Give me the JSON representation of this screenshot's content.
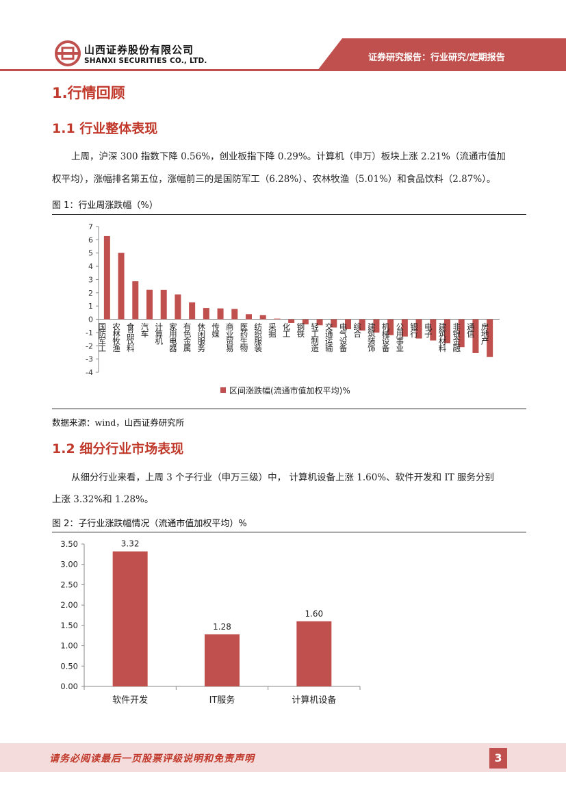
{
  "header": {
    "company_cn": "山西证券股份有限公司",
    "company_en": "SHANXI SECURITIES CO., LTD.",
    "report_type": "证券研究报告：行业研究/定期报告"
  },
  "section1": {
    "title": "1.行情回顾"
  },
  "section1_1": {
    "title": "1.1 行业整体表现",
    "para_line1": "上周，沪深 300 指数下降 0.56%，创业板指下降 0.29%。计算机（申万）板块上涨 2.21%（流通市值加",
    "para_line2": "权平均），涨幅排名第五位，涨幅前三的是国防军工（6.28%）、农林牧渔（5.01%）和食品饮料（2.87%）。"
  },
  "figure1": {
    "caption": "图 1：行业周涨跌幅（%）",
    "source": "数据来源：wind，山西证券研究所"
  },
  "section1_2": {
    "title": "1.2 细分行业市场表现",
    "para_line1": "从细分行业来看，上周 3 个子行业（申万三级）中， 计算机设备上涨 1.60%、软件开发和 IT 服务分别",
    "para_line2": "上涨 3.32%和 1.28%。"
  },
  "figure2": {
    "caption": "图 2：子行业涨跌幅情况（流通市值加权平均）%"
  },
  "chart_data": [
    {
      "type": "bar",
      "categories": [
        "国防军工",
        "农林牧渔",
        "食品饮料",
        "汽车",
        "计算机",
        "家用电器",
        "有色金属",
        "休闲服务",
        "传媒",
        "商业贸易",
        "医药生物",
        "纺织服装",
        "采掘",
        "化工",
        "钢铁",
        "轻工制造",
        "交通运输",
        "电气设备",
        "综合",
        "建筑装饰",
        "机械设备",
        "公用事业",
        "银行",
        "电子",
        "建筑材料",
        "非银金融",
        "通信",
        "房地产"
      ],
      "series": [
        {
          "name": "区间涨跌幅(流通市值加权平均)%",
          "values": [
            6.28,
            5.01,
            2.87,
            2.22,
            2.21,
            1.87,
            1.28,
            0.85,
            0.82,
            0.78,
            0.38,
            0.32,
            0.05,
            -0.28,
            -0.38,
            -0.45,
            -0.62,
            -0.75,
            -0.85,
            -1.0,
            -1.2,
            -1.3,
            -1.45,
            -1.6,
            -1.8,
            -2.1,
            -2.55,
            -2.85
          ]
        }
      ],
      "ylim": [
        -4,
        7
      ],
      "yticks": [
        "7",
        "6",
        "5",
        "4",
        "3",
        "2",
        "1",
        "0",
        "-1",
        "-2",
        "-3",
        "-4"
      ],
      "color": "#c0504d",
      "legend": "bottom",
      "grid": false
    },
    {
      "type": "bar",
      "categories": [
        "软件开发",
        "IT服务",
        "计算机设备"
      ],
      "values": [
        3.32,
        1.28,
        1.6
      ],
      "data_labels": [
        "3.32",
        "1.28",
        "1.60"
      ],
      "ylim": [
        0,
        3.5
      ],
      "yticks": [
        "3.50",
        "3.00",
        "2.50",
        "2.00",
        "1.50",
        "1.00",
        "0.50",
        "0.00"
      ],
      "color": "#c0504d",
      "grid": false
    }
  ],
  "footer": {
    "disclaimer": "请务必阅读最后一页股票评级说明和免责声明",
    "page_number": "3"
  }
}
